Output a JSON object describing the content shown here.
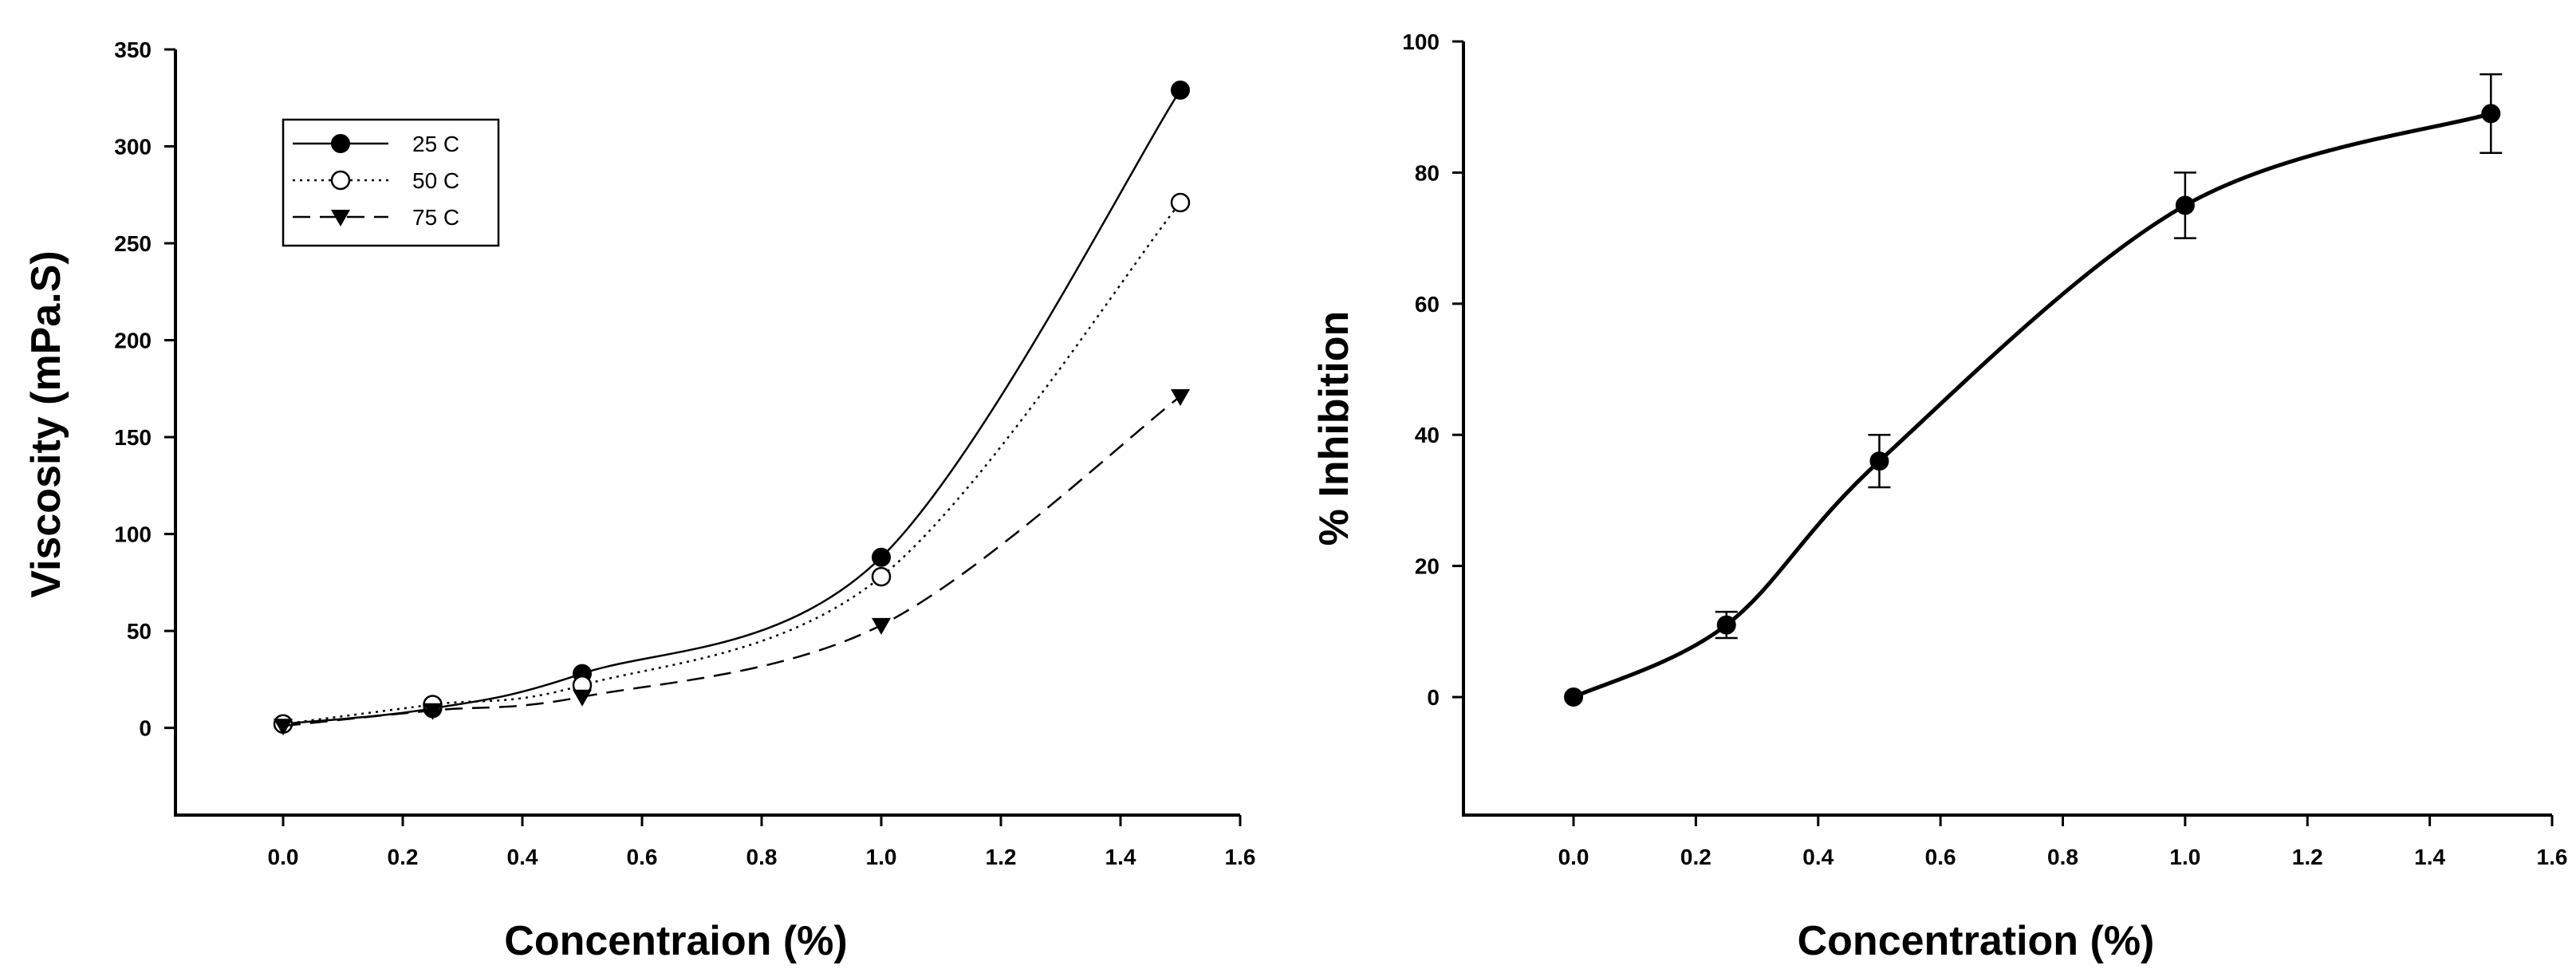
{
  "chart_data": [
    {
      "type": "line",
      "title": "",
      "xlabel": "Concentraion (%)",
      "ylabel": "Viscosity (mPa.S)",
      "xlim": [
        -0.18,
        1.6
      ],
      "ylim": [
        -45,
        350
      ],
      "xticks": [
        "0.0",
        "0.2",
        "0.4",
        "0.6",
        "0.8",
        "1.0",
        "1.2",
        "1.4",
        "1.6"
      ],
      "yticks": [
        "0",
        "50",
        "100",
        "150",
        "200",
        "250",
        "300",
        "350"
      ],
      "x": [
        0.0,
        0.25,
        0.5,
        1.0,
        1.5
      ],
      "series": [
        {
          "name": "25 C",
          "values": [
            2,
            10,
            28,
            88,
            329
          ],
          "marker": "filled-circle",
          "line": "solid"
        },
        {
          "name": "50 C",
          "values": [
            2,
            12,
            22,
            78,
            271
          ],
          "marker": "open-circle",
          "line": "dotted"
        },
        {
          "name": "75 C",
          "values": [
            1,
            9,
            16,
            53,
            171
          ],
          "marker": "filled-triangle-down",
          "line": "dashed"
        }
      ],
      "legend": "top-left"
    },
    {
      "type": "line",
      "title": "",
      "xlabel": "Concentration (%)",
      "ylabel": "% Inhibition",
      "xlim": [
        -0.18,
        1.6
      ],
      "ylim": [
        -18,
        100
      ],
      "xticks": [
        "0.0",
        "0.2",
        "0.4",
        "0.6",
        "0.8",
        "1.0",
        "1.2",
        "1.4",
        "1.6"
      ],
      "yticks": [
        "0",
        "20",
        "40",
        "60",
        "80",
        "100"
      ],
      "x": [
        0.0,
        0.25,
        0.5,
        1.0,
        1.5
      ],
      "series": [
        {
          "name": "Inhibition",
          "values": [
            0,
            11,
            36,
            75,
            89
          ],
          "errors": [
            0,
            2,
            4,
            5,
            6
          ],
          "marker": "filled-circle",
          "line": "solid"
        }
      ]
    }
  ]
}
